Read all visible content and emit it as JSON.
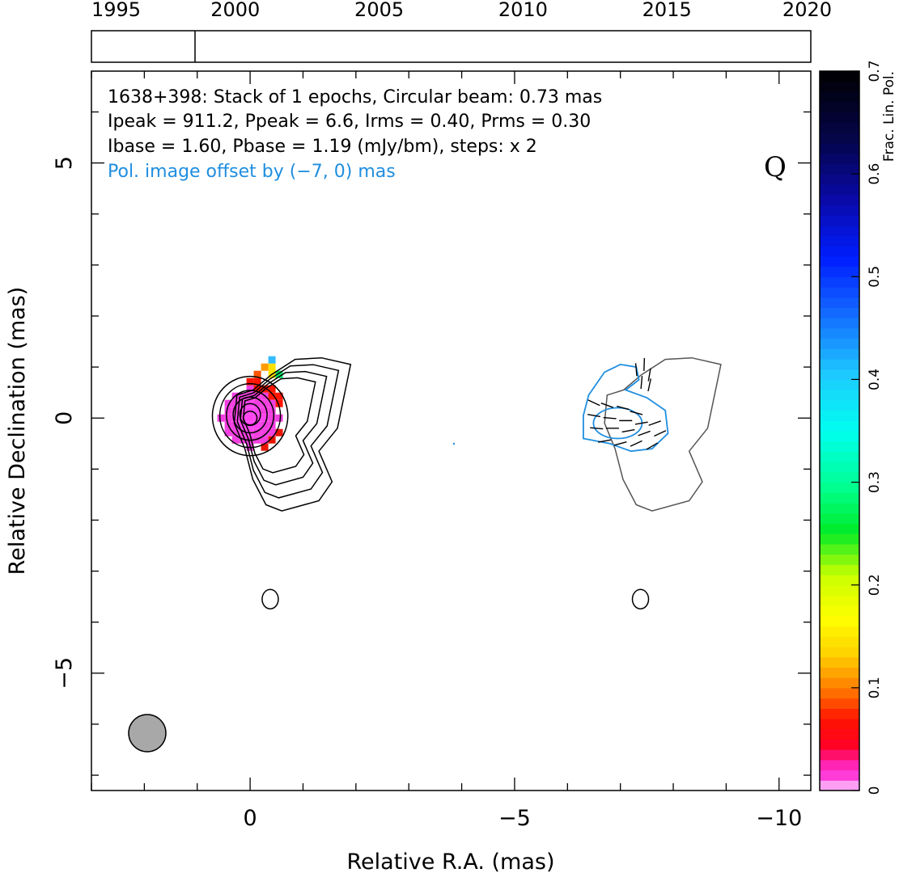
{
  "chart_data": {
    "type": "image-contour",
    "title_lines": [
      "1638+398: Stack of 1 epochs, Circular beam: 0.73 mas",
      "Ipeak = 911.2, Ppeak = 6.6, Irms = 0.40, Prms = 0.30",
      "Ibase = 1.60, Pbase = 1.19 (mJy/bm), steps: x 2"
    ],
    "offset_note": "Pol. image offset by (−7, 0) mas",
    "band_label": "Q",
    "xlabel": "Relative R.A. (mas)",
    "ylabel": "Relative Declination (mas)",
    "xlim": [
      3,
      -10.6
    ],
    "ylim": [
      -7.3,
      6.8
    ],
    "x_ticks": [
      0,
      -5,
      -10
    ],
    "x_tick_labels": [
      "0",
      "−5",
      "−10"
    ],
    "y_ticks": [
      5,
      0,
      -5
    ],
    "y_tick_labels": [
      "5",
      "0",
      "−5"
    ],
    "epoch_axis": {
      "labels": [
        "1995",
        "2000",
        "2005",
        "2010",
        "2015",
        "2020"
      ],
      "values": [
        1995,
        2000,
        2005,
        2010,
        2015,
        2020
      ],
      "range": [
        1995,
        2020
      ],
      "epochs": [
        1998.6
      ]
    },
    "colorbar": {
      "label": "Frac. Lin. Pol.",
      "range": [
        0,
        0.7
      ],
      "ticks": [
        0,
        0.1,
        0.2,
        0.3,
        0.4,
        0.5,
        0.6,
        0.7
      ],
      "tick_labels": [
        "0",
        "0.1",
        "0.2",
        "0.3",
        "0.4",
        "0.5",
        "0.6",
        "0.7"
      ]
    },
    "core_position": [
      0,
      0
    ],
    "stokes_I_contour_levels": [
      "1.60",
      "3.20",
      "6.40",
      "12.8",
      "25.6",
      "51.2",
      "102.4",
      "204.8",
      "409.6"
    ],
    "pol_offset_mas": [
      -7,
      0
    ],
    "beam_fwhm_mas": 0.73,
    "grid": false,
    "colors": {
      "stokes_I": "#000000",
      "offset_I_contour": "#555555",
      "pol_contour": "#1f8ee0",
      "evpa_sticks": "#000000",
      "beam_fill": "#a8a8a8",
      "frac_pol_low": "#ff44dd",
      "frac_pol_mid": "#ff2200"
    }
  }
}
